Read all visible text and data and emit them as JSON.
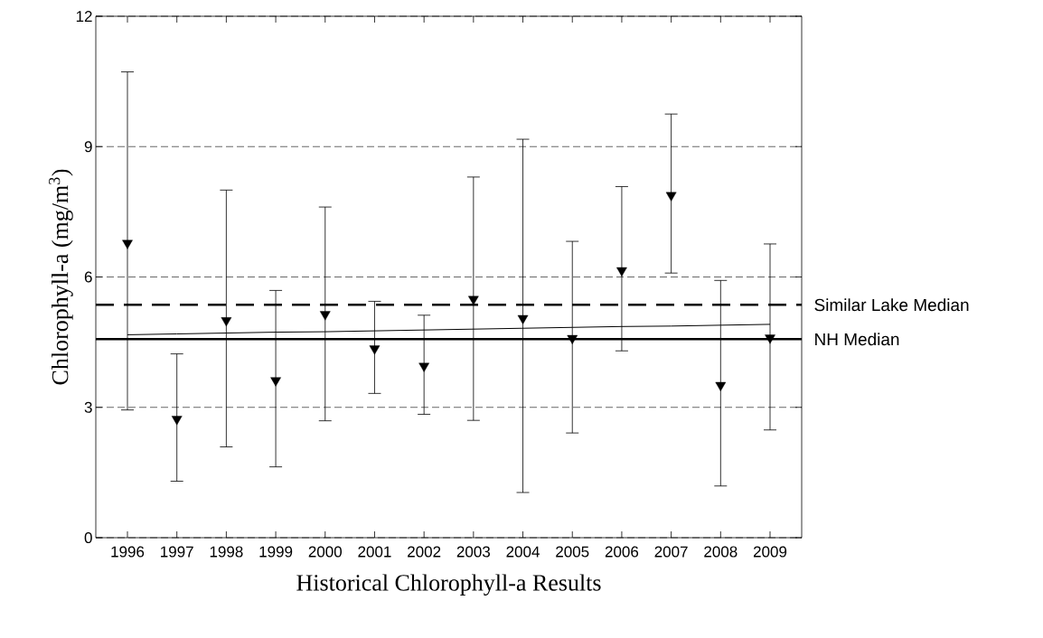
{
  "chart_data": {
    "type": "scatter",
    "xlabel": "Historical Chlorophyll-a Results",
    "ylabel": "Chlorophyll-a (mg/m$^{3}$)",
    "categories": [
      "1996",
      "1997",
      "1998",
      "1999",
      "2000",
      "2001",
      "2002",
      "2003",
      "2004",
      "2005",
      "2006",
      "2007",
      "2008",
      "2009"
    ],
    "series": [
      {
        "color": "#000000",
        "marker": "triangle",
        "values": [
          6.78,
          2.73,
          5.0,
          3.62,
          5.14,
          4.35,
          3.95,
          5.49,
          5.05,
          4.59,
          6.15,
          7.88,
          3.51,
          4.6
        ],
        "errors": [
          [
            2.94,
            10.72
          ],
          [
            1.3,
            4.23
          ],
          [
            2.09,
            8.0
          ],
          [
            1.63,
            5.69
          ],
          [
            2.69,
            7.61
          ],
          [
            3.32,
            5.44
          ],
          [
            2.84,
            5.12
          ],
          [
            2.7,
            8.3
          ],
          [
            1.04,
            9.17
          ],
          [
            2.41,
            6.82
          ],
          [
            4.3,
            8.08
          ],
          [
            6.09,
            9.75
          ],
          [
            1.19,
            5.92
          ],
          [
            2.48,
            6.76
          ]
        ]
      },
      {
        "type": "line",
        "color": "#000000",
        "values": [
          4.67,
          4.69,
          4.71,
          4.73,
          4.74,
          4.76,
          4.78,
          4.8,
          4.82,
          4.84,
          4.86,
          4.87,
          4.89,
          4.91
        ]
      }
    ],
    "ylim": [
      0,
      12
    ],
    "yticks": [
      0,
      3,
      6,
      9,
      12
    ],
    "grid": "y",
    "ref_lines": [
      {
        "axis": "y",
        "value": 5.36,
        "label": "Similar Lake Median",
        "color": "#000000",
        "line_style": "dashed"
      },
      {
        "axis": "y",
        "value": 4.57,
        "label": "NH Median",
        "color": "#000000",
        "line_style": "solid"
      }
    ]
  }
}
